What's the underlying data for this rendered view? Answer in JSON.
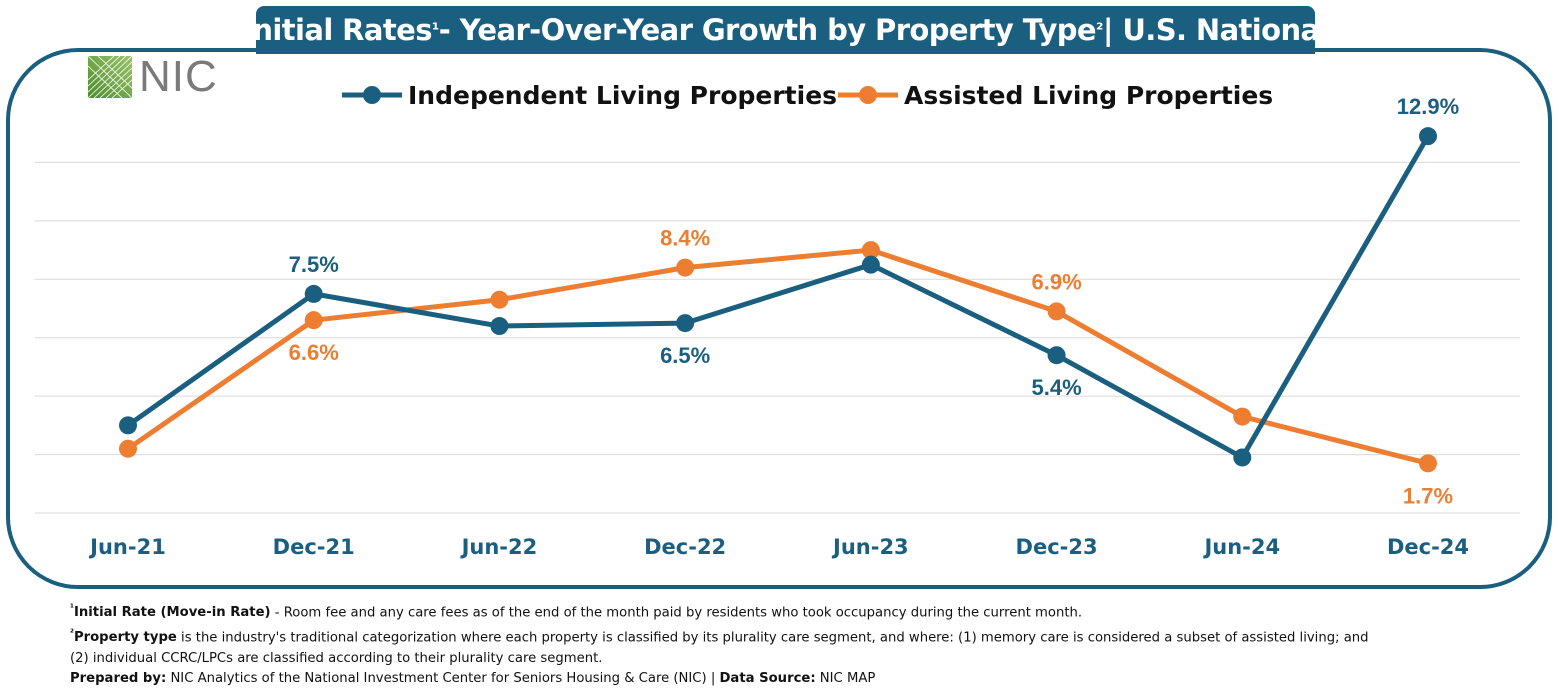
{
  "title": {
    "pre": "Initial Rates",
    "sup1": "¹",
    "mid": " - Year-Over-Year Growth by Property Type",
    "sup2": "²",
    "post": " | U.S. National"
  },
  "logo": {
    "text": "NIC"
  },
  "colors": {
    "frame": "#1b5f80",
    "independent": "#1b5f80",
    "assisted": "#ed7d31",
    "grid": "#d9d9d9",
    "axis_text": "#1b5f80"
  },
  "chart_data": {
    "type": "line",
    "categories": [
      "Jun-21",
      "Dec-21",
      "Jun-22",
      "Dec-22",
      "Jun-23",
      "Dec-23",
      "Jun-24",
      "Dec-24"
    ],
    "series": [
      {
        "name": "Independent Living Properties",
        "color": "#1b5f80",
        "values": [
          3.0,
          7.5,
          6.4,
          6.5,
          8.5,
          5.4,
          1.9,
          12.9
        ]
      },
      {
        "name": "Assisted Living Properties",
        "color": "#ed7d31",
        "values": [
          2.2,
          6.6,
          7.3,
          8.4,
          9.0,
          6.9,
          3.3,
          1.7
        ]
      }
    ],
    "data_labels": [
      {
        "series": 0,
        "index": 1,
        "text": "7.5%",
        "position": "above"
      },
      {
        "series": 0,
        "index": 3,
        "text": "6.5%",
        "position": "below"
      },
      {
        "series": 0,
        "index": 5,
        "text": "5.4%",
        "position": "below"
      },
      {
        "series": 0,
        "index": 7,
        "text": "12.9%",
        "position": "above"
      },
      {
        "series": 1,
        "index": 1,
        "text": "6.6%",
        "position": "below"
      },
      {
        "series": 1,
        "index": 3,
        "text": "8.4%",
        "position": "above"
      },
      {
        "series": 1,
        "index": 5,
        "text": "6.9%",
        "position": "above"
      },
      {
        "series": 1,
        "index": 7,
        "text": "1.7%",
        "position": "below"
      }
    ],
    "ylim": [
      0,
      14
    ],
    "grid": true,
    "legend": "top",
    "xlabel": "",
    "ylabel": ""
  },
  "footnotes": {
    "n1_sup": "¹",
    "n1_bold": "Initial Rate (Move-in Rate)",
    "n1_text": " - Room fee and any care fees as of the end of the month paid by residents who took occupancy during the current month.",
    "n2_sup": "²",
    "n2_bold": "Property type",
    "n2_text": " is the industry's traditional categorization where each property is classified by its plurality care segment, and where: (1) memory care is considered a subset of assisted living; and",
    "n2_text2": "(2) individual CCRC/LPCs are classified according to their plurality care segment.",
    "prep_bold": "Prepared by:",
    "prep_text": " NIC Analytics of the National Investment Center for Seniors Housing & Care (NIC) | ",
    "src_bold": "Data Source:",
    "src_text": " NIC MAP"
  }
}
